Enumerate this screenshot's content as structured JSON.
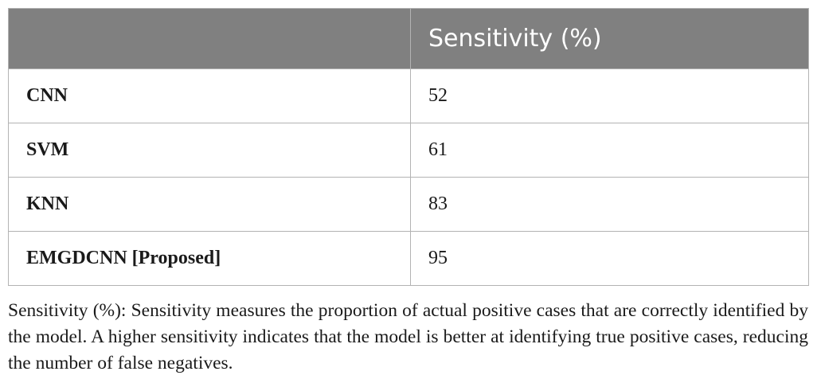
{
  "table": {
    "headers": [
      "",
      "Sensitivity (%)"
    ],
    "rows": [
      {
        "model": "CNN",
        "sensitivity": "52"
      },
      {
        "model": "SVM",
        "sensitivity": "61"
      },
      {
        "model": "KNN",
        "sensitivity": "83"
      },
      {
        "model": "EMGDCNN [Proposed]",
        "sensitivity": "95"
      }
    ]
  },
  "footnote": "Sensitivity (%): Sensitivity measures the proportion of actual positive cases that are correctly identified by the model. A higher sensitivity indicates that the model is better at identifying true positive cases, reducing the number of false negatives."
}
